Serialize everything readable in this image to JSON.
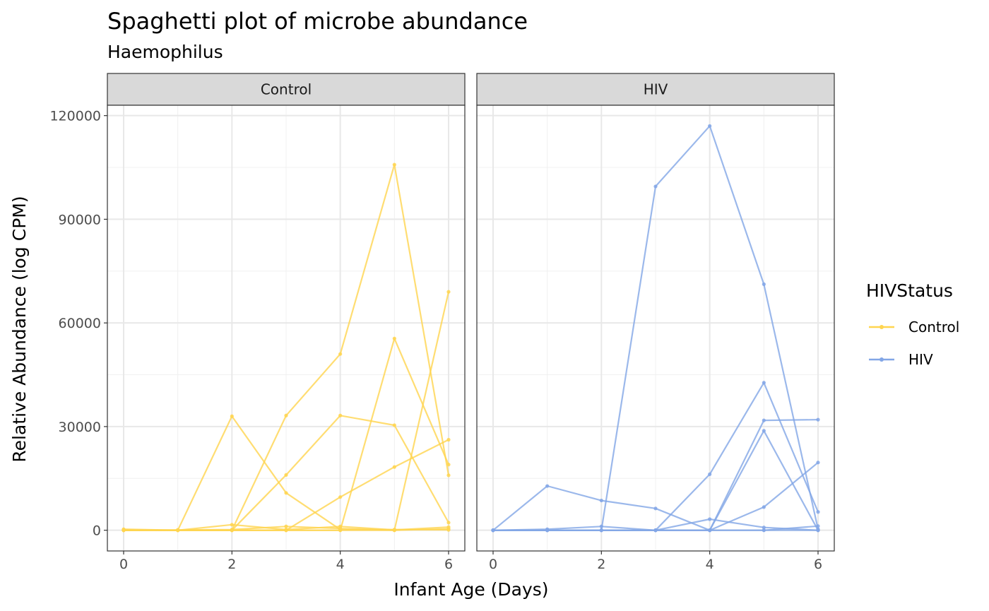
{
  "chart_data": {
    "type": "line",
    "title": "Spaghetti plot of microbe abundance",
    "subtitle": "Haemophilus",
    "xlabel": "Infant Age (Days)",
    "ylabel": "Relative Abundance (log CPM)",
    "xlim": [
      -0.3,
      6.3
    ],
    "ylim": [
      -6000,
      123000
    ],
    "x_ticks": [
      0,
      2,
      4,
      6
    ],
    "x_tick_labels": [
      "0",
      "2",
      "4",
      "6"
    ],
    "y_ticks": [
      0,
      30000,
      60000,
      90000,
      120000
    ],
    "y_tick_labels": [
      "0",
      "30000",
      "60000",
      "90000",
      "120000"
    ],
    "grid": true,
    "legend": {
      "title": "HIVStatus",
      "placement": "right",
      "entries": [
        {
          "label": "Control",
          "color": "#FFD54F"
        },
        {
          "label": "HIV",
          "color": "#82A6E6"
        }
      ]
    },
    "panels": [
      {
        "label": "Control",
        "color": "#FFD54F",
        "series": [
          {
            "x": [
              0,
              1,
              2,
              3,
              4,
              5,
              6
            ],
            "y": [
              100,
              0,
              33000,
              10800,
              200,
              200,
              100
            ]
          },
          {
            "x": [
              0,
              1,
              2,
              3,
              4,
              5,
              6
            ],
            "y": [
              0,
              0,
              0,
              33200,
              51000,
              105800,
              15900
            ]
          },
          {
            "x": [
              0,
              1,
              2,
              3,
              4,
              5,
              6
            ],
            "y": [
              0,
              0,
              0,
              16000,
              33200,
              30400,
              2200
            ]
          },
          {
            "x": [
              0,
              1,
              2,
              3,
              4,
              5,
              6
            ],
            "y": [
              0,
              0,
              0,
              0,
              9600,
              18300,
              26200
            ]
          },
          {
            "x": [
              0,
              1,
              2,
              3,
              4,
              5,
              6
            ],
            "y": [
              0,
              0,
              0,
              0,
              0,
              55500,
              19000
            ]
          },
          {
            "x": [
              0,
              1,
              2,
              3,
              4,
              5,
              6
            ],
            "y": [
              0,
              0,
              0,
              0,
              0,
              0,
              69000
            ]
          },
          {
            "x": [
              0,
              1,
              2,
              3,
              4,
              5,
              6
            ],
            "y": [
              300,
              0,
              1600,
              200,
              1100,
              100,
              900
            ]
          },
          {
            "x": [
              0,
              1,
              2,
              3,
              4,
              5,
              6
            ],
            "y": [
              0,
              100,
              200,
              1100,
              500,
              0,
              400
            ]
          }
        ]
      },
      {
        "label": "HIV",
        "color": "#82A6E6",
        "series": [
          {
            "x": [
              0,
              1,
              2,
              3,
              4,
              5,
              6
            ],
            "y": [
              0,
              12800,
              8600,
              6300,
              0,
              0,
              0
            ]
          },
          {
            "x": [
              0,
              1,
              2,
              3,
              4,
              5,
              6
            ],
            "y": [
              0,
              0,
              0,
              99500,
              117000,
              71200,
              300
            ]
          },
          {
            "x": [
              0,
              1,
              2,
              3,
              4,
              5,
              6
            ],
            "y": [
              0,
              0,
              0,
              0,
              16200,
              42700,
              5300
            ]
          },
          {
            "x": [
              0,
              1,
              2,
              3,
              4,
              5,
              6
            ],
            "y": [
              0,
              0,
              0,
              0,
              3200,
              800,
              0
            ]
          },
          {
            "x": [
              0,
              1,
              2,
              3,
              4,
              5,
              6
            ],
            "y": [
              0,
              0,
              0,
              0,
              0,
              31800,
              32000
            ]
          },
          {
            "x": [
              0,
              1,
              2,
              3,
              4,
              5,
              6
            ],
            "y": [
              0,
              0,
              0,
              0,
              0,
              28800,
              0
            ]
          },
          {
            "x": [
              0,
              1,
              2,
              3,
              4,
              5,
              6
            ],
            "y": [
              0,
              0,
              0,
              0,
              0,
              6700,
              19600
            ]
          },
          {
            "x": [
              0,
              1,
              2,
              3,
              4,
              5,
              6
            ],
            "y": [
              0,
              300,
              1100,
              0,
              0,
              0,
              1200
            ]
          }
        ]
      }
    ]
  }
}
